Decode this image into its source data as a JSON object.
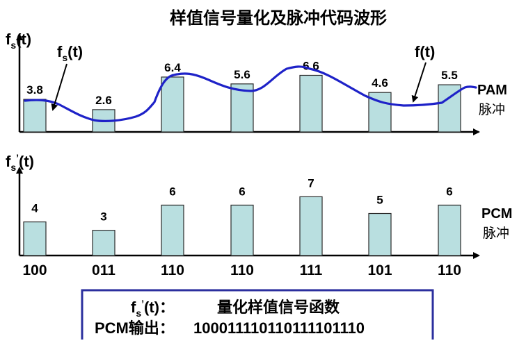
{
  "title": "样值信号量化及脉冲代码波形",
  "top_panel": {
    "axis_label": {
      "main": "f",
      "sub": "s",
      "tail": "(t)"
    },
    "sample_label": {
      "main": "f",
      "sub": "s",
      "tail": "(t)"
    },
    "signal_label": "f(t)",
    "side_label": "PAM",
    "side_sublabel": "脉冲",
    "samples": [
      3.8,
      2.6,
      6.4,
      5.6,
      6.6,
      4.6,
      5.5
    ],
    "sample_labels": [
      "3.8",
      "2.6",
      "6.4",
      "5.6",
      "6.6",
      "4.6",
      "5.5"
    ]
  },
  "bottom_panel": {
    "axis_label": {
      "main": "f",
      "sub": "s",
      "prime": "’",
      "tail": "(t)"
    },
    "side_label": "PCM",
    "side_sublabel": "脉冲",
    "levels": [
      4,
      3,
      6,
      6,
      7,
      5,
      6
    ],
    "level_labels": [
      "4",
      "3",
      "6",
      "6",
      "7",
      "5",
      "6"
    ],
    "codes": [
      "100",
      "011",
      "110",
      "110",
      "111",
      "101",
      "110"
    ]
  },
  "legend_box": {
    "line1_label": {
      "main": "f",
      "sub": "s",
      "prime": "’",
      "tail": "(t)："
    },
    "line1_text": "量化样值信号函数",
    "line2_label": "PCM输出：",
    "line2_text": "100011110110111101110"
  },
  "colors": {
    "bar_fill": "#b9dfe0",
    "bar_stroke": "#2a2a2a",
    "signal_curve": "#1e22c8",
    "box_border": "#2b2f9e",
    "text": "#000000"
  }
}
